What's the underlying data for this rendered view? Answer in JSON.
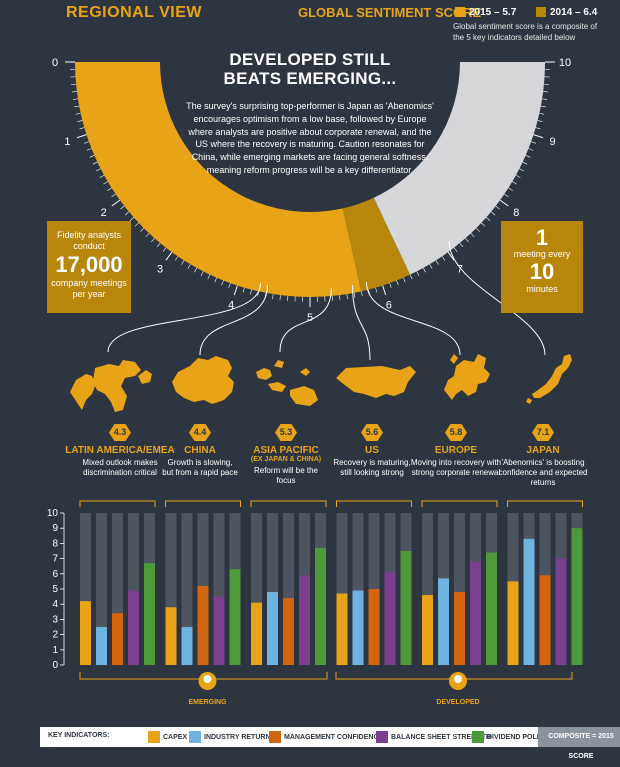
{
  "header": {
    "title": "REGIONAL VIEW",
    "score_title": "GLOBAL SENTIMENT SCORE",
    "legend_2015": "2015 – 5.7",
    "legend_2014": "2014 – 6.4",
    "note": "Global sentiment score is a composite of the 5 key indicators detailed below",
    "colors": {
      "accent": "#e8a317",
      "dark_gold": "#b8860b",
      "light_grey": "#d5d7db",
      "background": "#2d3640"
    }
  },
  "gauge": {
    "min": 0,
    "max": 10,
    "score_2015": 5.7,
    "score_2014": 6.4,
    "tick_labels": [
      "0",
      "1",
      "2",
      "3",
      "4",
      "5",
      "6",
      "7",
      "8",
      "9",
      "10"
    ]
  },
  "center": {
    "title_line1": "DEVELOPED STILL",
    "title_line2": "BEATS EMERGING...",
    "body": "The survey's surprising top-performer is Japan as 'Abenomics' encourages optimism from a low base, followed by Europe where analysts are positive about corporate renewal, and the US where the recovery is maturing. Caution resonates for China, while emerging markets are facing general softness, meaning reform progress will be a key differentiator."
  },
  "left_box": {
    "line1": "Fidelity analysts conduct",
    "big": "17,000",
    "line2": "company meetings per year"
  },
  "right_box": {
    "big1": "1",
    "line1": "meeting every",
    "big2": "10",
    "line2": "minutes"
  },
  "regions": [
    {
      "name": "LATIN AMERICA/EMEA",
      "sub": "",
      "score": "4.3",
      "desc": "Mixed outlook makes discrimination critical"
    },
    {
      "name": "CHINA",
      "sub": "",
      "score": "4.4",
      "desc": "Growth is slowing, but from a rapid pace"
    },
    {
      "name": "ASIA PACIFIC",
      "sub": "(EX JAPAN & CHINA)",
      "score": "5.3",
      "desc": "Reform will be the focus"
    },
    {
      "name": "US",
      "sub": "",
      "score": "5.6",
      "desc": "Recovery is maturing, still looking strong"
    },
    {
      "name": "EUROPE",
      "sub": "",
      "score": "5.8",
      "desc": "Moving into recovery with strong corporate renewal"
    },
    {
      "name": "JAPAN",
      "sub": "",
      "score": "7.1",
      "desc": "'Abenomics' is boosting confidence and expected returns"
    }
  ],
  "chart_data": {
    "type": "bar",
    "categories": [
      "LATIN AMERICA/EMEA",
      "CHINA",
      "ASIA PACIFIC",
      "US",
      "EUROPE",
      "JAPAN"
    ],
    "ylim": [
      0,
      10
    ],
    "yticks": [
      "0",
      "1",
      "2",
      "3",
      "4",
      "5",
      "6",
      "7",
      "8",
      "9",
      "10"
    ],
    "composite_max": 10,
    "series": [
      {
        "name": "CAPEX",
        "color": "#e8a317",
        "values": [
          4.2,
          3.8,
          4.1,
          4.7,
          4.6,
          5.5
        ]
      },
      {
        "name": "INDUSTRY RETURNS",
        "color": "#6fb3e0",
        "values": [
          2.5,
          2.5,
          4.8,
          4.9,
          5.7,
          8.3
        ]
      },
      {
        "name": "MANAGEMENT CONFIDENCE",
        "color": "#d4650f",
        "values": [
          3.4,
          5.2,
          4.4,
          5.0,
          4.8,
          5.9
        ]
      },
      {
        "name": "BALANCE SHEET STRENGTH",
        "color": "#7a3f8e",
        "values": [
          4.9,
          4.5,
          5.9,
          6.1,
          6.8,
          7.0
        ]
      },
      {
        "name": "DIVIDEND POLICY",
        "color": "#4e9a3a",
        "values": [
          6.7,
          6.3,
          7.7,
          7.5,
          7.4,
          9.0
        ]
      }
    ],
    "group_labels": [
      "EMERGING",
      "DEVELOPED"
    ]
  },
  "key": {
    "title": "KEY INDICATORS:",
    "composite": "COMPOSITE = 2015 SCORE"
  }
}
